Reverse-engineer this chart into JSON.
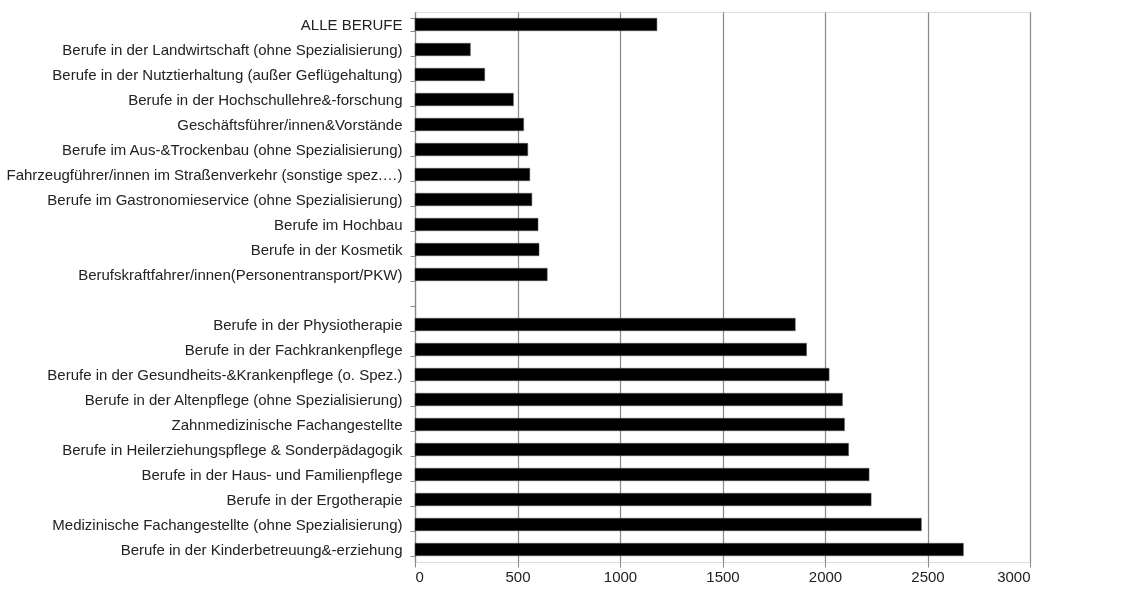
{
  "chart_data": {
    "type": "bar",
    "orientation": "horizontal",
    "categories": [
      "ALLE BERUFE",
      "Berufe in der Landwirtschaft (ohne Spezialisierung)",
      "Berufe in der Nutztierhaltung (außer Geflügehaltung)",
      "Berufe in der Hochschullehre&-forschung",
      "Geschäftsführer/innen&Vorstände",
      "Berufe im Aus-&Trockenbau (ohne Spezialisierung)",
      "Fahrzeugführer/innen im Straßenverkehr (sonstige spez.…)",
      "Berufe im Gastronomieservice (ohne Spezialisierung)",
      "Berufe im Hochbau",
      "Berufe in der Kosmetik",
      "Berufskraftfahrer/innen(Personentransport/PKW)",
      null,
      "Berufe in der Physiotherapie",
      "Berufe in der Fachkrankenpflege",
      "Berufe in der Gesundheits-&Krankenpflege (o. Spez.)",
      "Berufe in der Altenpflege (ohne Spezialisierung)",
      "Zahnmedizinische Fachangestellte",
      "Berufe in Heilerziehungspflege & Sonderpädagogik",
      "Berufe in der Haus- und Familienpflege",
      "Berufe in der Ergotherapie",
      "Medizinische Fachangestellte (ohne Spezialisierung)",
      "Berufe in der Kinderbetreuung&-erziehung"
    ],
    "values": [
      1180,
      270,
      340,
      480,
      530,
      550,
      560,
      570,
      600,
      605,
      645,
      null,
      1855,
      1910,
      2020,
      2085,
      2095,
      2115,
      2215,
      2225,
      2470,
      2675
    ],
    "color": "#000000",
    "xlim": [
      0,
      3000
    ],
    "xticks": [
      0,
      500,
      1000,
      1500,
      2000,
      2500,
      3000
    ],
    "grid": "x"
  }
}
